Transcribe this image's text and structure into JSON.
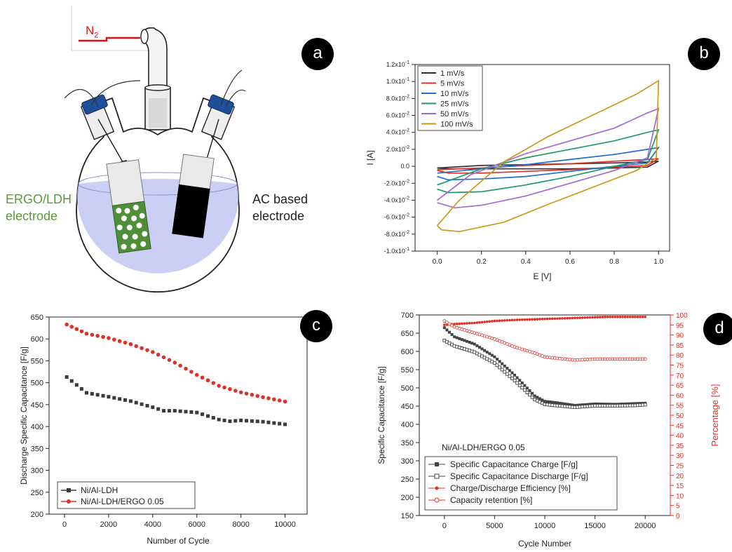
{
  "panel_a": {
    "badge": "a",
    "gas_label": "N",
    "gas_sub": "2",
    "left_electrode_line1": "ERGO/LDH",
    "left_electrode_line2": "electrode",
    "right_electrode_line1": "AC based",
    "right_electrode_line2": "electrode",
    "colors": {
      "left_label": "#5a9a3a",
      "gas": "#e01010",
      "liquid": "#b9bff2"
    }
  },
  "chart_data": [
    {
      "panel": "b",
      "type": "line",
      "badge": "b",
      "xlabel": "E [V]",
      "ylabel": "I [A]",
      "xlim": [
        -0.1,
        1.05
      ],
      "ylim": [
        -0.1,
        0.12
      ],
      "x_ticks": [
        "0.0",
        "0.2",
        "0.4",
        "0.6",
        "0.8",
        "1.0"
      ],
      "y_ticks_mantissa": [
        "-1.0x10",
        "-8.0x10",
        "-6.0x10",
        "-4.0x10",
        "-2.0x10",
        "0.0",
        "2.0x10",
        "4.0x10",
        "6.0x10",
        "8.0x10",
        "1.0x10",
        "1.2x10"
      ],
      "y_ticks_exponent": [
        "-1",
        "-2",
        "-2",
        "-2",
        "-2",
        "",
        "-2",
        "-2",
        "-2",
        "-2",
        "-1",
        "-1"
      ],
      "legend_position": "top-left",
      "series": [
        {
          "name": "1 mV/s",
          "color": "#333333",
          "upper": [
            [
              0,
              -0.002
            ],
            [
              0.2,
              0.001
            ],
            [
              0.4,
              0.002
            ],
            [
              0.6,
              0.003
            ],
            [
              0.8,
              0.004
            ],
            [
              0.95,
              0.005
            ],
            [
              1.0,
              0.006
            ]
          ],
          "lower": [
            [
              1.0,
              0.006
            ],
            [
              0.95,
              -0.001
            ],
            [
              0.8,
              -0.002
            ],
            [
              0.6,
              -0.003
            ],
            [
              0.4,
              -0.003
            ],
            [
              0.2,
              -0.003
            ],
            [
              0.05,
              -0.003
            ],
            [
              0,
              -0.002
            ]
          ]
        },
        {
          "name": "5 mV/s",
          "color": "#e0302a",
          "upper": [
            [
              0,
              -0.004
            ],
            [
              0.2,
              -0.002
            ],
            [
              0.4,
              0.001
            ],
            [
              0.6,
              0.003
            ],
            [
              0.8,
              0.006
            ],
            [
              0.95,
              0.008
            ],
            [
              1.0,
              0.009
            ]
          ],
          "lower": [
            [
              1.0,
              0.009
            ],
            [
              0.95,
              0.001
            ],
            [
              0.8,
              -0.001
            ],
            [
              0.6,
              -0.004
            ],
            [
              0.4,
              -0.006
            ],
            [
              0.2,
              -0.008
            ],
            [
              0.05,
              -0.008
            ],
            [
              0,
              -0.005
            ]
          ]
        },
        {
          "name": "10 mV/s",
          "color": "#1f6fd0",
          "upper": [
            [
              0,
              -0.008
            ],
            [
              0.2,
              -0.003
            ],
            [
              0.4,
              0.002
            ],
            [
              0.6,
              0.008
            ],
            [
              0.8,
              0.014
            ],
            [
              0.95,
              0.02
            ],
            [
              1.0,
              0.022
            ]
          ],
          "lower": [
            [
              1.0,
              0.022
            ],
            [
              0.95,
              0.004
            ],
            [
              0.8,
              0.0
            ],
            [
              0.6,
              -0.006
            ],
            [
              0.4,
              -0.012
            ],
            [
              0.2,
              -0.015
            ],
            [
              0.05,
              -0.016
            ],
            [
              0,
              -0.012
            ]
          ]
        },
        {
          "name": "25 mV/s",
          "color": "#1e9a6a",
          "upper": [
            [
              0,
              -0.022
            ],
            [
              0.2,
              -0.003
            ],
            [
              0.4,
              0.01
            ],
            [
              0.6,
              0.02
            ],
            [
              0.8,
              0.03
            ],
            [
              0.95,
              0.04
            ],
            [
              1.0,
              0.043
            ]
          ],
          "lower": [
            [
              1.0,
              0.043
            ],
            [
              0.95,
              0.008
            ],
            [
              0.8,
              0.0
            ],
            [
              0.6,
              -0.012
            ],
            [
              0.4,
              -0.022
            ],
            [
              0.2,
              -0.03
            ],
            [
              0.05,
              -0.031
            ],
            [
              0,
              -0.027
            ]
          ]
        },
        {
          "name": "50 mV/s",
          "color": "#a467d6",
          "upper": [
            [
              0,
              -0.04
            ],
            [
              0.15,
              -0.01
            ],
            [
              0.4,
              0.015
            ],
            [
              0.6,
              0.03
            ],
            [
              0.8,
              0.045
            ],
            [
              0.95,
              0.063
            ],
            [
              1.0,
              0.068
            ]
          ],
          "lower": [
            [
              1.0,
              0.068
            ],
            [
              0.95,
              0.01
            ],
            [
              0.8,
              -0.005
            ],
            [
              0.6,
              -0.02
            ],
            [
              0.4,
              -0.035
            ],
            [
              0.2,
              -0.046
            ],
            [
              0.08,
              -0.049
            ],
            [
              0,
              -0.043
            ]
          ]
        },
        {
          "name": "100 mV/s",
          "color": "#c99a1a",
          "upper": [
            [
              0,
              -0.07
            ],
            [
              0.1,
              -0.04
            ],
            [
              0.3,
              0.005
            ],
            [
              0.5,
              0.035
            ],
            [
              0.7,
              0.06
            ],
            [
              0.9,
              0.085
            ],
            [
              1.0,
              0.101
            ]
          ],
          "lower": [
            [
              1.0,
              0.101
            ],
            [
              0.99,
              0.01
            ],
            [
              0.9,
              -0.005
            ],
            [
              0.7,
              -0.025
            ],
            [
              0.5,
              -0.045
            ],
            [
              0.3,
              -0.066
            ],
            [
              0.1,
              -0.077
            ],
            [
              0.02,
              -0.075
            ],
            [
              0,
              -0.07
            ]
          ]
        }
      ]
    },
    {
      "panel": "c",
      "type": "scatter",
      "badge": "c",
      "xlabel": "Number of Cycle",
      "ylabel": "Discharge Specific Capacitance [F/g]",
      "xlim": [
        -700,
        11000
      ],
      "ylim": [
        200,
        650
      ],
      "x_ticks": [
        "0",
        "2000",
        "4000",
        "6000",
        "8000",
        "10000"
      ],
      "y_ticks": [
        "200",
        "250",
        "300",
        "350",
        "400",
        "450",
        "500",
        "550",
        "600",
        "650"
      ],
      "legend_position": "bottom-left",
      "series": [
        {
          "name": "Ni/Al-LDH",
          "color": "#3a3a3a",
          "points": [
            [
              100,
              513
            ],
            [
              1000,
              477
            ],
            [
              2000,
              468
            ],
            [
              3000,
              458
            ],
            [
              4000,
              444
            ],
            [
              4500,
              436
            ],
            [
              5000,
              436
            ],
            [
              6000,
              432
            ],
            [
              7000,
              416
            ],
            [
              7500,
              412
            ],
            [
              8000,
              414
            ],
            [
              9000,
              411
            ],
            [
              10000,
              405
            ]
          ]
        },
        {
          "name": "Ni/Al-LDH/ERGO 0.05",
          "color": "#e0302a",
          "points": [
            [
              100,
              633
            ],
            [
              1000,
              612
            ],
            [
              2000,
              602
            ],
            [
              3000,
              588
            ],
            [
              4000,
              570
            ],
            [
              5000,
              546
            ],
            [
              6000,
              518
            ],
            [
              7000,
              493
            ],
            [
              8000,
              478
            ],
            [
              9000,
              467
            ],
            [
              10000,
              457
            ]
          ]
        }
      ]
    },
    {
      "panel": "d",
      "type": "scatter",
      "badge": "d",
      "xlabel": "Cycle Number",
      "ylabel": "Specific Capacitance [F/g]",
      "ylabel_right": "Percentage [%]",
      "xlim": [
        -2500,
        22500
      ],
      "ylim": [
        150,
        700
      ],
      "ylim_right": [
        0,
        100
      ],
      "x_ticks": [
        "0",
        "5000",
        "10000",
        "15000",
        "20000"
      ],
      "y_ticks": [
        "150",
        "200",
        "250",
        "300",
        "350",
        "400",
        "450",
        "500",
        "550",
        "600",
        "650",
        "700"
      ],
      "y_ticks_right": [
        "0",
        "5",
        "10",
        "15",
        "20",
        "25",
        "30",
        "35",
        "40",
        "45",
        "50",
        "55",
        "60",
        "65",
        "70",
        "75",
        "80",
        "85",
        "90",
        "95",
        "100"
      ],
      "annotation": "Ni/Al-LDH/ERGO 0.05",
      "legend_position": "bottom-left",
      "series": [
        {
          "name": "Specific Capacitance Charge [F/g]",
          "color": "#444444",
          "axis": "left",
          "points": [
            [
              0,
              665
            ],
            [
              1000,
              640
            ],
            [
              3000,
              620
            ],
            [
              5000,
              585
            ],
            [
              7000,
              535
            ],
            [
              9000,
              478
            ],
            [
              10000,
              463
            ],
            [
              11000,
              460
            ],
            [
              13000,
              452
            ],
            [
              15000,
              456
            ],
            [
              17000,
              455
            ],
            [
              19000,
              457
            ],
            [
              20000,
              458
            ]
          ]
        },
        {
          "name": "Specific Capacitance Discharge [F/g]",
          "color": "#444444",
          "axis": "left",
          "points": [
            [
              0,
              630
            ],
            [
              1000,
              615
            ],
            [
              3000,
              598
            ],
            [
              5000,
              568
            ],
            [
              7000,
              520
            ],
            [
              9000,
              468
            ],
            [
              10000,
              455
            ],
            [
              11000,
              452
            ],
            [
              13000,
              447
            ],
            [
              15000,
              451
            ],
            [
              17000,
              451
            ],
            [
              19000,
              452
            ],
            [
              20000,
              454
            ]
          ]
        },
        {
          "name": "Charge/Discharge Efficiency [%]",
          "color": "#e0302a",
          "axis": "right",
          "points": [
            [
              0,
              95
            ],
            [
              1000,
              95.5
            ],
            [
              3000,
              96
            ],
            [
              5000,
              97
            ],
            [
              7000,
              97.5
            ],
            [
              10000,
              98
            ],
            [
              13000,
              98.5
            ],
            [
              16000,
              99
            ],
            [
              20000,
              99
            ]
          ]
        },
        {
          "name": "Capacity retention [%]",
          "color": "#e0302a",
          "axis": "right",
          "points": [
            [
              0,
              97
            ],
            [
              1000,
              94
            ],
            [
              3000,
              91
            ],
            [
              5000,
              88
            ],
            [
              7000,
              84
            ],
            [
              9000,
              81
            ],
            [
              10000,
              79
            ],
            [
              11000,
              78.5
            ],
            [
              13000,
              77.5
            ],
            [
              15000,
              78
            ],
            [
              17000,
              78
            ],
            [
              19000,
              78
            ],
            [
              20000,
              78
            ]
          ]
        }
      ]
    }
  ]
}
